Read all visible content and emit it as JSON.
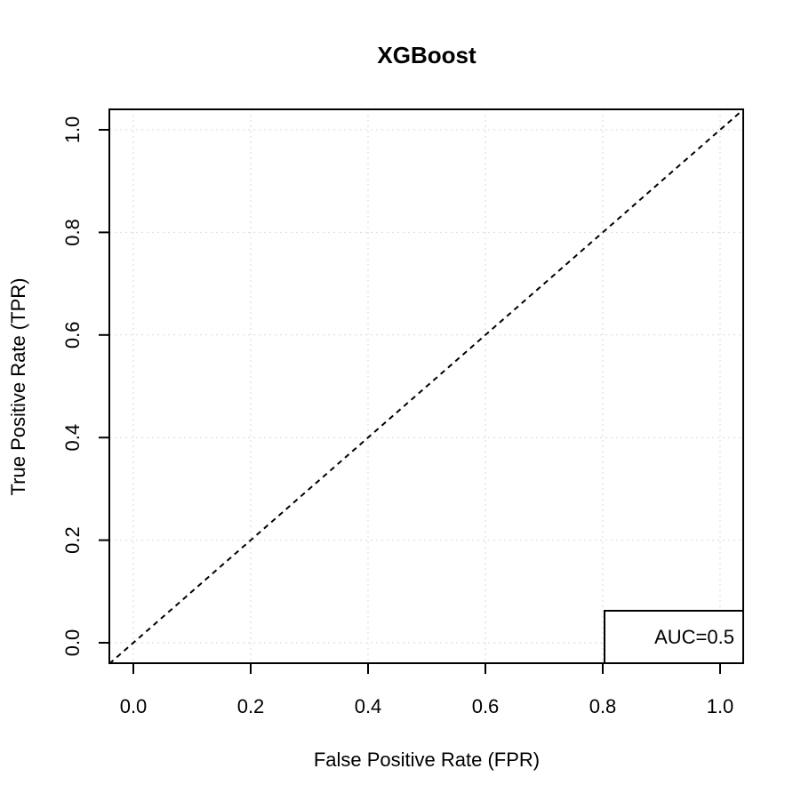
{
  "chart_data": {
    "type": "line",
    "title": "XGBoost",
    "xlabel": "False Positive Rate (FPR)",
    "ylabel": "True Positive Rate (TPR)",
    "xlim": [
      0,
      1
    ],
    "ylim": [
      0,
      1
    ],
    "xticks": [
      "0.0",
      "0.2",
      "0.4",
      "0.6",
      "0.8",
      "1.0"
    ],
    "yticks": [
      "0.0",
      "0.2",
      "0.4",
      "0.6",
      "0.8",
      "1.0"
    ],
    "grid": true,
    "series": [
      {
        "x": [
          0,
          1
        ],
        "y": [
          0,
          1
        ],
        "style": "dashed",
        "color": "#000000"
      }
    ],
    "legend": {
      "text": "AUC=0.5",
      "placement": "bottom-right"
    }
  }
}
